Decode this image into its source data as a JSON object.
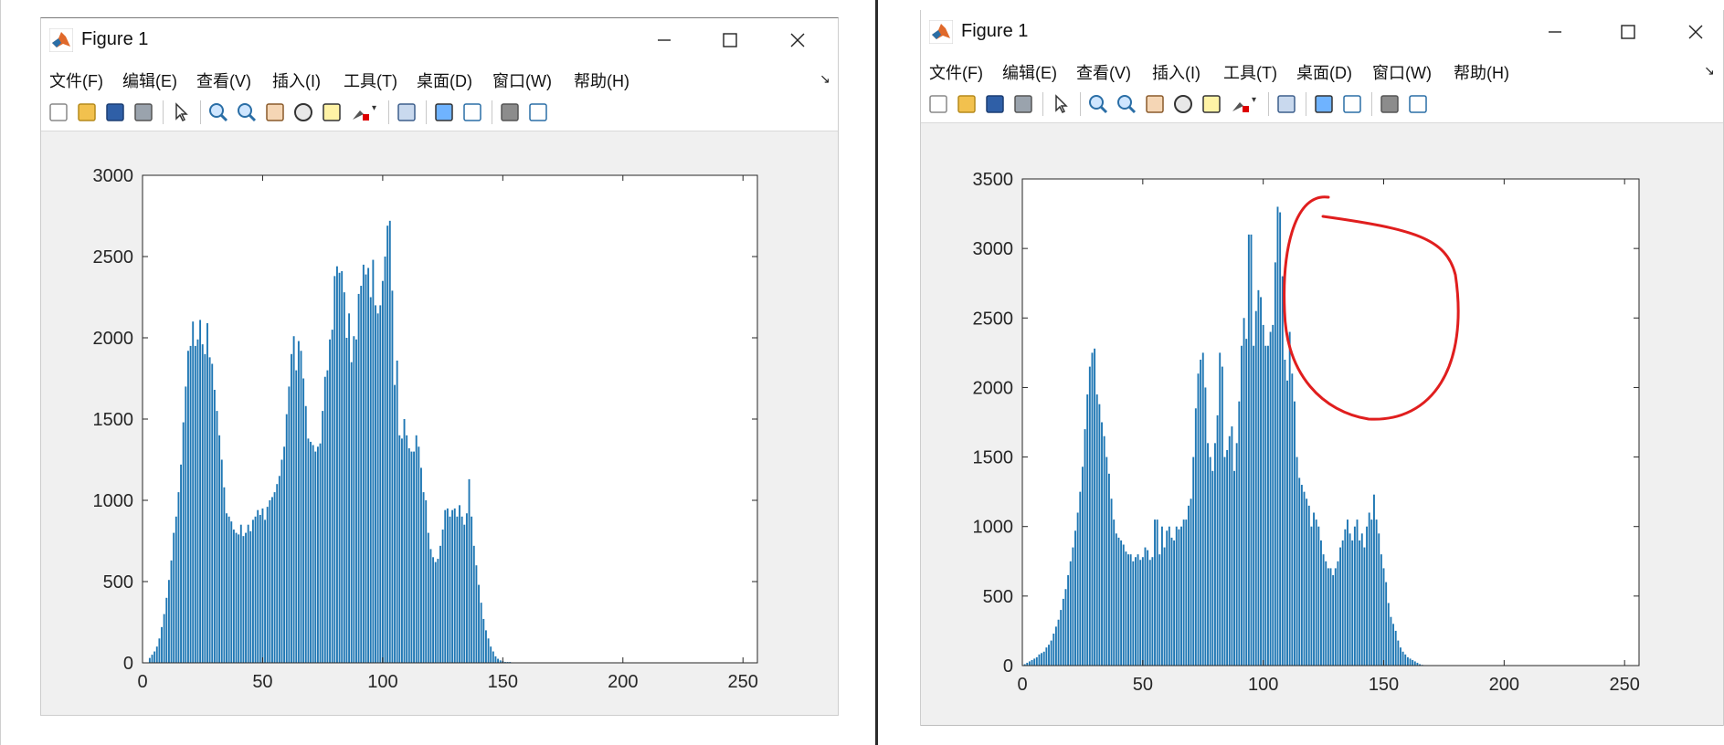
{
  "figures": [
    {
      "window": {
        "title": "Figure 1",
        "menu": [
          "文件(F)",
          "编辑(E)",
          "查看(V)",
          "插入(I)",
          "工具(T)",
          "桌面(D)",
          "窗口(W)",
          "帮助(H)"
        ]
      },
      "chart_data": {
        "type": "bar",
        "title": "",
        "xlabel": "",
        "ylabel": "",
        "xlim": [
          0,
          256
        ],
        "ylim": [
          0,
          3000
        ],
        "xticks": [
          "0",
          "50",
          "100",
          "150",
          "200",
          "250"
        ],
        "yticks": [
          "0",
          "500",
          "1000",
          "1500",
          "2000",
          "2500",
          "3000"
        ],
        "bar_color": "#1f77b4",
        "x_start": 1,
        "values": [
          0,
          0,
          30,
          50,
          70,
          100,
          150,
          220,
          300,
          400,
          510,
          630,
          800,
          900,
          1050,
          1220,
          1480,
          1700,
          1920,
          1950,
          2100,
          1950,
          1990,
          2110,
          1960,
          1900,
          2090,
          1880,
          1840,
          1680,
          1550,
          1400,
          1250,
          1080,
          920,
          900,
          870,
          820,
          800,
          790,
          850,
          780,
          800,
          850,
          810,
          880,
          900,
          940,
          910,
          950,
          880,
          960,
          1000,
          1020,
          1050,
          1100,
          1150,
          1250,
          1330,
          1530,
          1700,
          1900,
          2010,
          1800,
          1980,
          1920,
          1750,
          1580,
          1380,
          1360,
          1340,
          1300,
          1330,
          1350,
          1550,
          1760,
          1800,
          1990,
          2050,
          2380,
          2440,
          2400,
          2410,
          2280,
          2000,
          2150,
          1850,
          2010,
          1990,
          2270,
          2320,
          2450,
          2390,
          2430,
          2250,
          2480,
          2200,
          2150,
          2200,
          2350,
          2500,
          2690,
          2720,
          2290,
          1710,
          1860,
          1400,
          1380,
          1500,
          1400,
          1320,
          1300,
          1300,
          1400,
          1330,
          1200,
          1050,
          1000,
          800,
          700,
          650,
          620,
          640,
          720,
          820,
          940,
          950,
          900,
          940,
          950,
          900,
          970,
          900,
          850,
          920,
          1130,
          900,
          720,
          600,
          480,
          370,
          270,
          200,
          150,
          100,
          70,
          40,
          25,
          15,
          10,
          5,
          5,
          5,
          2,
          1,
          1
        ]
      },
      "annotation": ""
    },
    {
      "window": {
        "title": "Figure 1",
        "menu": [
          "文件(F)",
          "编辑(E)",
          "查看(V)",
          "插入(I)",
          "工具(T)",
          "桌面(D)",
          "窗口(W)",
          "帮助(H)"
        ]
      },
      "chart_data": {
        "type": "bar",
        "title": "",
        "xlabel": "",
        "ylabel": "",
        "xlim": [
          0,
          256
        ],
        "ylim": [
          0,
          3500
        ],
        "xticks": [
          "0",
          "50",
          "100",
          "150",
          "200",
          "250"
        ],
        "yticks": [
          "0",
          "500",
          "1000",
          "1500",
          "2000",
          "2500",
          "3000",
          "3500"
        ],
        "bar_color": "#1f77b4",
        "x_start": 1,
        "values": [
          10,
          20,
          30,
          40,
          50,
          60,
          80,
          90,
          100,
          130,
          150,
          180,
          230,
          280,
          330,
          400,
          480,
          550,
          650,
          750,
          850,
          970,
          1100,
          1250,
          1430,
          1700,
          1950,
          2150,
          2250,
          2280,
          1950,
          1880,
          1750,
          1650,
          1500,
          1380,
          1200,
          1050,
          950,
          920,
          900,
          870,
          820,
          800,
          800,
          750,
          780,
          800,
          760,
          780,
          850,
          830,
          760,
          780,
          1050,
          1050,
          800,
          1000,
          850,
          970,
          1000,
          920,
          900,
          1000,
          980,
          1000,
          1050,
          1050,
          1150,
          1200,
          1500,
          1850,
          2100,
          2200,
          2250,
          2000,
          1600,
          1500,
          1400,
          1600,
          1800,
          2250,
          2150,
          1500,
          1550,
          1650,
          1720,
          1400,
          1600,
          1900,
          2300,
          2500,
          2350,
          3100,
          3100,
          2300,
          2550,
          2700,
          2650,
          2450,
          2300,
          2300,
          2400,
          2450,
          2900,
          3300,
          3260,
          2800,
          2200,
          2050,
          2400,
          2100,
          1900,
          1500,
          1350,
          1300,
          1250,
          1200,
          1150,
          1000,
          1100,
          1050,
          1000,
          900,
          800,
          750,
          700,
          700,
          650,
          700,
          750,
          850,
          900,
          980,
          1050,
          950,
          900,
          1000,
          1050,
          900,
          950,
          850,
          1000,
          1100,
          1050,
          1230,
          1050,
          950,
          800,
          700,
          600,
          450,
          350,
          300,
          250,
          180,
          130,
          100,
          80,
          60,
          50,
          40,
          30,
          20,
          10,
          5
        ]
      },
      "annotation": ""
    }
  ]
}
